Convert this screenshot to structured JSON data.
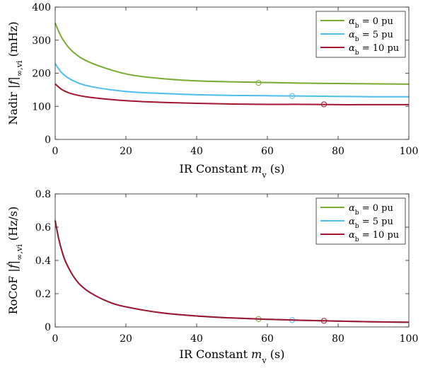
{
  "colors": {
    "green": "#77ac30",
    "blue": "#4dbeee",
    "red": "#a2142f"
  },
  "legend_placement": "top-right",
  "chart_data": [
    {
      "type": "line",
      "ylabel": "Nadir |f|∞,vi (mHz)",
      "xlabel": "IR Constant mv (s)",
      "xlim": [
        0,
        100
      ],
      "ylim": [
        0,
        400
      ],
      "xticks": [
        "0",
        "20",
        "40",
        "60",
        "80",
        "100"
      ],
      "yticks": [
        "0",
        "100",
        "200",
        "300",
        "400"
      ],
      "grid": false,
      "legend": [
        "αb = 0 pu",
        "αb = 5 pu",
        "αb = 10 pu"
      ],
      "series": [
        {
          "name": "αb = 0 pu",
          "color": "green",
          "x": [
            0,
            2,
            5,
            10,
            20,
            30,
            40,
            50,
            60,
            70,
            80,
            90,
            100
          ],
          "y": [
            352,
            305,
            265,
            232,
            198,
            184,
            177,
            174,
            172,
            170,
            169,
            168,
            167
          ],
          "marker": {
            "x": 57.5,
            "y": 171
          }
        },
        {
          "name": "αb = 5 pu",
          "color": "blue",
          "x": [
            0,
            2,
            5,
            10,
            20,
            30,
            40,
            50,
            60,
            70,
            80,
            90,
            100
          ],
          "y": [
            229,
            200,
            178,
            160,
            145,
            139,
            135,
            133,
            132,
            131,
            130,
            129,
            129
          ],
          "marker": {
            "x": 67,
            "y": 131
          }
        },
        {
          "name": "αb = 10 pu",
          "color": "red",
          "x": [
            0,
            2,
            5,
            10,
            20,
            30,
            40,
            50,
            60,
            70,
            80,
            90,
            100
          ],
          "y": [
            168,
            150,
            137,
            127,
            117,
            112,
            109,
            107,
            106,
            106,
            105,
            105,
            105
          ],
          "marker": {
            "x": 76,
            "y": 106
          }
        }
      ]
    },
    {
      "type": "line",
      "ylabel": "RoCoF |ḟ|∞,vi (Hz/s)",
      "xlabel": "IR Constant mv (s)",
      "xlim": [
        0,
        100
      ],
      "ylim": [
        0,
        0.8
      ],
      "xticks": [
        "0",
        "20",
        "40",
        "60",
        "80",
        "100"
      ],
      "yticks": [
        "0",
        "0.2",
        "0.4",
        "0.6",
        "0.8"
      ],
      "grid": false,
      "legend": [
        "αb = 0 pu",
        "αb = 5 pu",
        "αb = 10 pu"
      ],
      "series": [
        {
          "name": "αb = 0 pu",
          "color": "green",
          "x": [
            0,
            1,
            2,
            3,
            5,
            7,
            10,
            15,
            20,
            30,
            40,
            50,
            60,
            70,
            80,
            90,
            100
          ],
          "y": [
            0.64,
            0.53,
            0.45,
            0.39,
            0.31,
            0.255,
            0.205,
            0.152,
            0.121,
            0.085,
            0.066,
            0.054,
            0.046,
            0.04,
            0.035,
            0.031,
            0.028
          ],
          "marker": {
            "x": 57.5,
            "y": 0.048
          }
        },
        {
          "name": "αb = 5 pu",
          "color": "blue",
          "x": [
            0,
            1,
            2,
            3,
            5,
            7,
            10,
            15,
            20,
            30,
            40,
            50,
            60,
            70,
            80,
            90,
            100
          ],
          "y": [
            0.64,
            0.53,
            0.45,
            0.39,
            0.31,
            0.255,
            0.205,
            0.152,
            0.121,
            0.085,
            0.066,
            0.054,
            0.046,
            0.04,
            0.035,
            0.031,
            0.028
          ],
          "marker": {
            "x": 67,
            "y": 0.041
          }
        },
        {
          "name": "αb = 10 pu",
          "color": "red",
          "x": [
            0,
            1,
            2,
            3,
            5,
            7,
            10,
            15,
            20,
            30,
            40,
            50,
            60,
            70,
            80,
            90,
            100
          ],
          "y": [
            0.64,
            0.53,
            0.45,
            0.39,
            0.31,
            0.255,
            0.205,
            0.152,
            0.121,
            0.085,
            0.066,
            0.054,
            0.046,
            0.04,
            0.035,
            0.031,
            0.028
          ],
          "marker": {
            "x": 76,
            "y": 0.037
          }
        }
      ]
    }
  ]
}
